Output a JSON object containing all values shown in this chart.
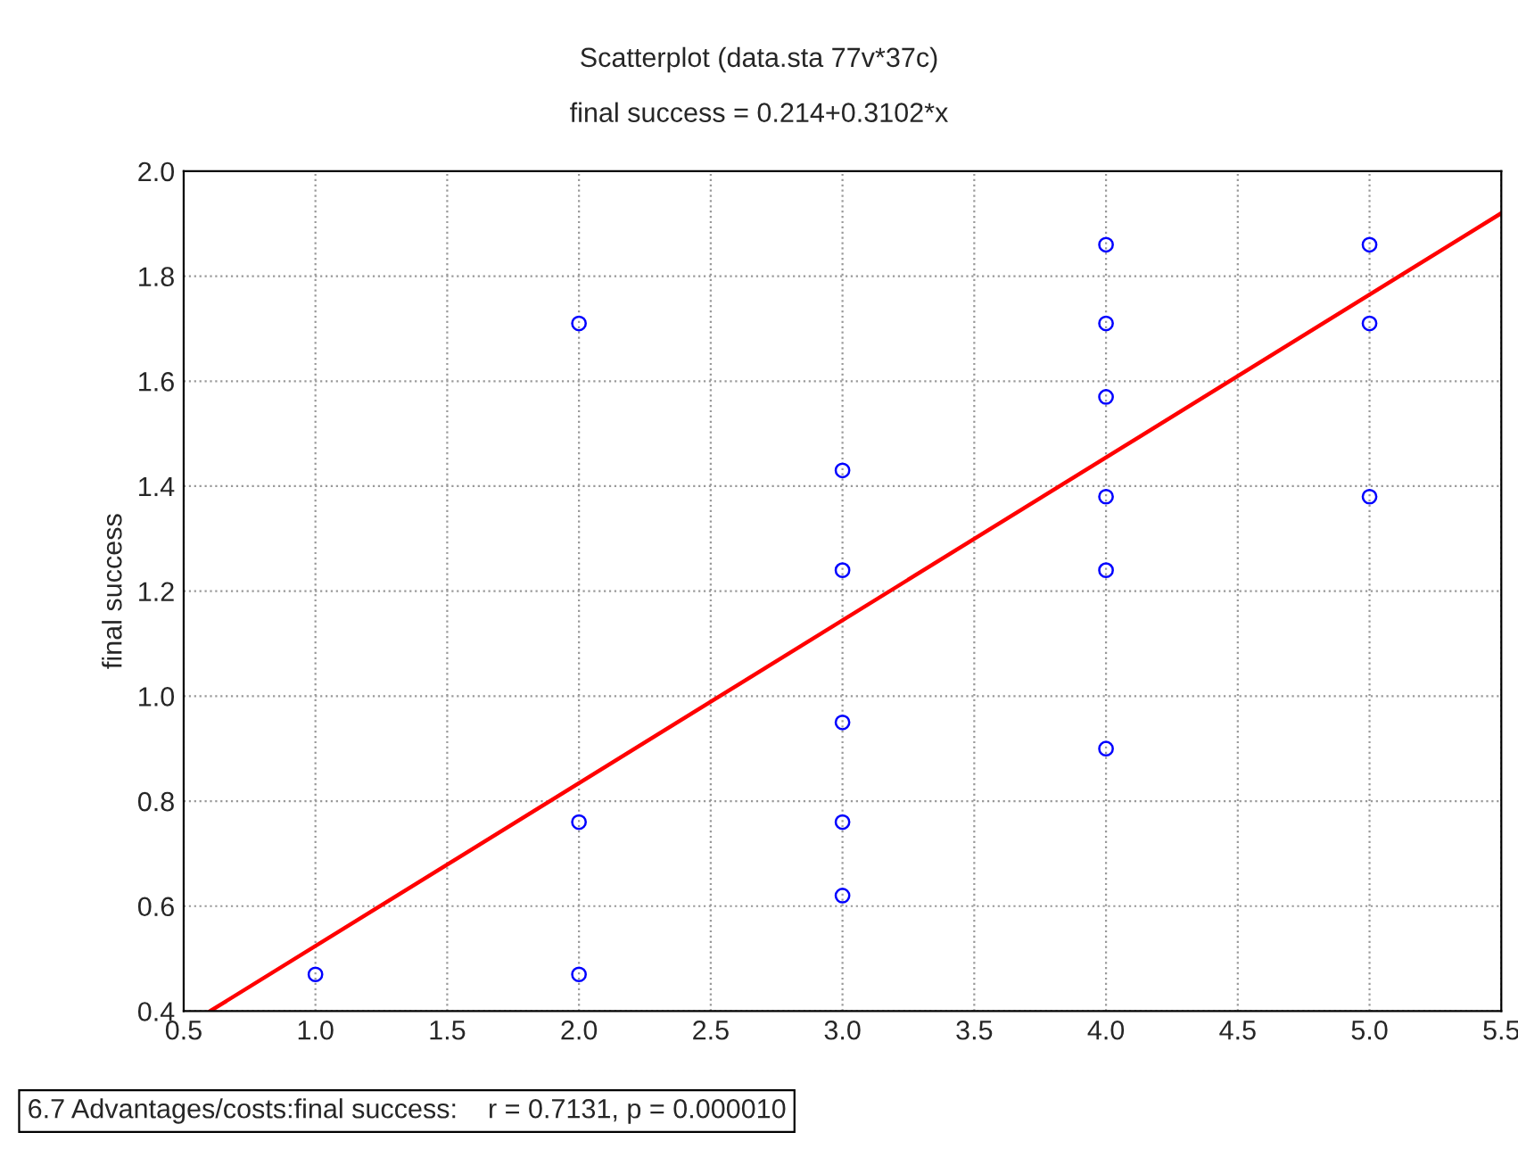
{
  "chart_data": {
    "type": "scatter",
    "title": "Scatterplot (data.sta 77v*37c)",
    "subtitle": "final success = 0.214+0.3102*x",
    "ylabel": "final success",
    "series": [
      {
        "color": "#0000ff",
        "marker": "circle",
        "x": [
          1,
          2,
          2,
          2,
          3,
          3,
          3,
          3,
          3,
          4,
          4,
          4,
          4,
          4,
          4,
          5,
          5,
          5
        ],
        "values": [
          0.47,
          1.71,
          0.76,
          0.47,
          1.43,
          1.24,
          0.95,
          0.76,
          0.62,
          1.86,
          1.71,
          1.57,
          1.38,
          1.24,
          0.9,
          1.86,
          1.71,
          1.38
        ]
      },
      {
        "type": "line",
        "color": "#ff0000",
        "marker": "none",
        "line_style": "solid",
        "x": [
          0.6,
          5.5
        ],
        "values": [
          0.4,
          1.92
        ]
      }
    ],
    "xlim": [
      0.5,
      5.5
    ],
    "xticks": [
      0.5,
      {
        "value": 1,
        "label": "1.0"
      },
      1.5,
      {
        "value": 2,
        "label": "2.0"
      },
      2.5,
      {
        "value": 3,
        "label": "3.0"
      },
      3.5,
      {
        "value": 4,
        "label": "4.0"
      },
      4.5,
      {
        "value": 5,
        "label": "5.0"
      },
      5.5
    ],
    "ylim": [
      0.4,
      2.0
    ],
    "yticks": [
      0.4,
      0.6,
      0.8,
      {
        "value": 1,
        "label": "1.0"
      },
      1.2,
      1.4,
      1.6,
      1.8,
      {
        "value": 2,
        "label": "2.0"
      }
    ],
    "grid": true,
    "annotations": [
      "6.7 Advantages/costs:final success:    r = 0.7131, p = 0.000010"
    ]
  }
}
